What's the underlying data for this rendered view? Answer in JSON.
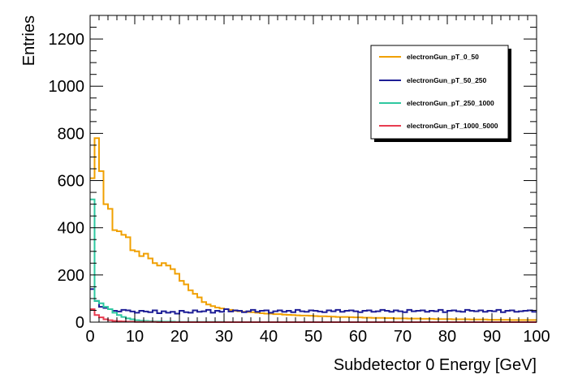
{
  "chart_data": {
    "type": "step histogram",
    "xlabel": "Subdetector 0 Energy [GeV]",
    "ylabel": "Entries",
    "xlim": [
      0,
      100
    ],
    "ylim": [
      0,
      1300
    ],
    "x_ticks": [
      0,
      10,
      20,
      30,
      40,
      50,
      60,
      70,
      80,
      90,
      100
    ],
    "x_tick_labels": [
      "0",
      "10",
      "20",
      "30",
      "40",
      "50",
      "60",
      "70",
      "80",
      "90",
      "100"
    ],
    "y_ticks": [
      0,
      200,
      400,
      600,
      800,
      1000,
      1200
    ],
    "y_tick_labels": [
      "0",
      "200",
      "400",
      "600",
      "800",
      "1000",
      "1200"
    ],
    "bin_width": 1,
    "legend_position": "top-right",
    "series": [
      {
        "name": "electronGun_pT_0_50",
        "color": "#f0a000",
        "values": [
          610,
          780,
          640,
          500,
          480,
          390,
          385,
          370,
          360,
          305,
          300,
          280,
          290,
          270,
          250,
          240,
          250,
          240,
          225,
          205,
          175,
          160,
          135,
          120,
          105,
          85,
          75,
          68,
          62,
          58,
          55,
          52,
          48,
          46,
          44,
          43,
          42,
          40,
          38,
          36,
          36,
          34,
          34,
          32,
          31,
          30,
          29,
          28,
          28,
          27,
          26,
          25,
          25,
          24,
          23,
          22,
          22,
          22,
          21,
          20,
          20,
          19,
          19,
          18,
          18,
          18,
          17,
          17,
          16,
          16,
          16,
          15,
          15,
          15,
          14,
          14,
          14,
          13,
          13,
          13,
          13,
          12,
          12,
          12,
          12,
          11,
          11,
          11,
          11,
          10,
          10,
          10,
          10,
          10,
          9,
          9,
          9,
          9,
          9,
          9
        ]
      },
      {
        "name": "electronGun_pT_50_250",
        "color": "#1e1e96",
        "values": [
          140,
          90,
          65,
          60,
          55,
          48,
          45,
          52,
          50,
          45,
          40,
          48,
          45,
          42,
          50,
          38,
          46,
          40,
          44,
          36,
          48,
          42,
          40,
          50,
          44,
          46,
          52,
          40,
          48,
          44,
          55,
          45,
          50,
          48,
          42,
          46,
          52,
          44,
          48,
          50,
          40,
          46,
          50,
          44,
          48,
          42,
          52,
          46,
          44,
          50,
          48,
          45,
          42,
          50,
          46,
          52,
          44,
          48,
          50,
          46,
          42,
          48,
          50,
          44,
          46,
          52,
          48,
          44,
          50,
          46,
          42,
          52,
          46,
          48,
          50,
          44,
          48,
          46,
          52,
          42,
          48,
          50,
          46,
          44,
          52,
          48,
          46,
          50,
          44,
          48,
          46,
          52,
          42,
          48,
          50,
          44,
          46,
          48,
          50,
          44
        ]
      },
      {
        "name": "electronGun_pT_250_1000",
        "color": "#2ec8a0",
        "values": [
          520,
          90,
          80,
          65,
          55,
          40,
          30,
          22,
          16,
          12,
          8,
          6,
          5,
          4,
          3,
          3,
          2,
          2,
          2,
          1,
          1,
          1,
          1,
          1,
          1,
          1,
          1,
          1,
          1,
          1,
          0,
          0,
          0,
          0,
          0,
          0,
          0,
          0,
          0,
          0,
          0,
          0,
          0,
          0,
          0,
          0,
          0,
          0,
          0,
          0,
          0,
          0,
          0,
          0,
          0,
          0,
          0,
          0,
          0,
          0,
          0,
          0,
          0,
          0,
          0,
          0,
          0,
          0,
          0,
          0,
          0,
          0,
          0,
          0,
          0,
          0,
          0,
          0,
          0,
          0,
          0,
          0,
          0,
          0,
          0,
          0,
          0,
          0,
          0,
          0,
          0,
          0,
          0,
          0,
          0,
          0,
          0,
          0,
          0,
          0
        ]
      },
      {
        "name": "electronGun_pT_1000_5000",
        "color": "#e83c50",
        "values": [
          55,
          30,
          20,
          12,
          8,
          5,
          4,
          3,
          2,
          2,
          1,
          1,
          1,
          1,
          1,
          0,
          0,
          0,
          0,
          0,
          0,
          0,
          0,
          0,
          0,
          0,
          0,
          0,
          0,
          0,
          0,
          0,
          0,
          0,
          0,
          0,
          0,
          0,
          0,
          0,
          0,
          0,
          0,
          0,
          0,
          0,
          0,
          0,
          0,
          0,
          0,
          0,
          0,
          0,
          0,
          0,
          0,
          0,
          0,
          0,
          0,
          0,
          0,
          0,
          0,
          0,
          0,
          0,
          0,
          0,
          0,
          0,
          0,
          0,
          0,
          0,
          0,
          0,
          0,
          0,
          0,
          0,
          0,
          0,
          0,
          0,
          0,
          0,
          0,
          0,
          0,
          0,
          0,
          0,
          0,
          0,
          0,
          0,
          0,
          0
        ]
      }
    ]
  }
}
